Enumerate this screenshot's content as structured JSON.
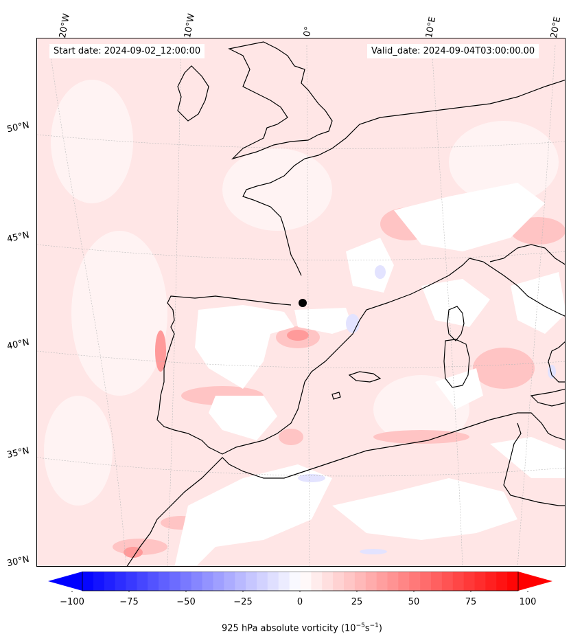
{
  "header": {
    "start_date": "Start date: 2024-09-02_12:00:00",
    "valid_date": "Valid_date: 2024-09-04T03:00:00.00"
  },
  "longitude_labels": [
    "20°W",
    "10°W",
    "0°",
    "10°E",
    "20°E"
  ],
  "latitude_labels": [
    "50°N",
    "45°N",
    "40°N",
    "35°N",
    "30°N"
  ],
  "colorbar": {
    "ticks": [
      "−100",
      "−75",
      "−50",
      "−25",
      "0",
      "25",
      "50",
      "75",
      "100"
    ],
    "label": "925 hPa absolute vorticity (10",
    "label_exp1": "−5",
    "label_mid": "s",
    "label_exp2": "−1",
    "label_end": ")",
    "min_color": "#0000ff",
    "mid_color": "#ffffff",
    "max_color": "#ff0000",
    "levels": 40
  },
  "colors": {
    "background_field": "#ffeaea",
    "coastline": "#000000",
    "gridline": "#b0b0b0"
  }
}
